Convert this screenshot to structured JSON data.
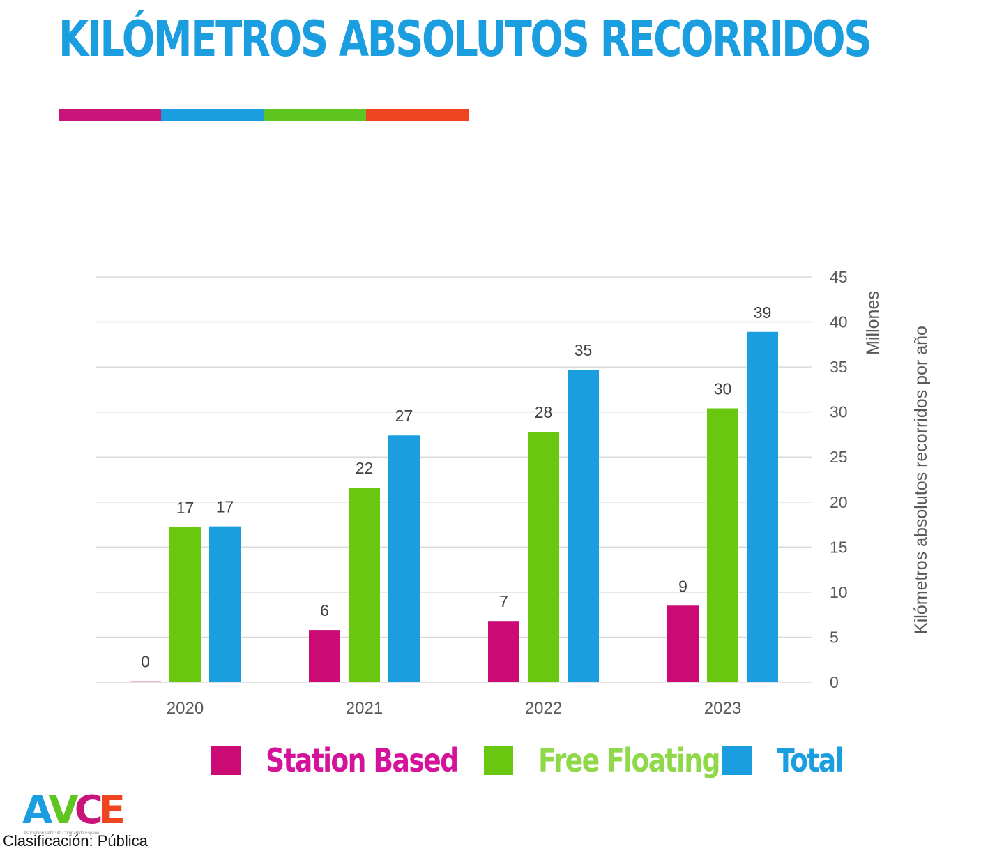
{
  "title": "KILÓMETROS ABSOLUTOS RECORRIDOS",
  "colors": {
    "title": "#1a9ee0",
    "magenta": "#cc0a74",
    "green": "#6ac710",
    "blue": "#1a9ee0",
    "red": "#ee4420",
    "green_text": "#8fd84a",
    "magenta_text": "#d4139a",
    "grid": "#d9d9d9",
    "tick_text": "#595959"
  },
  "stripe_colors": [
    "#c9157a",
    "#1a9ee0",
    "#5fc520",
    "#ee4420"
  ],
  "chart_data": {
    "type": "bar",
    "categories": [
      "2020",
      "2021",
      "2022",
      "2023"
    ],
    "series": [
      {
        "name": "Station Based",
        "values": [
          0,
          6,
          7,
          9
        ],
        "plot_values": [
          0.1,
          5.8,
          6.8,
          8.5
        ],
        "color": "#cc0a74"
      },
      {
        "name": "Free Floating",
        "values": [
          17,
          22,
          28,
          30
        ],
        "plot_values": [
          17.2,
          21.6,
          27.8,
          30.4
        ],
        "color": "#6ac710"
      },
      {
        "name": "Total",
        "values": [
          17,
          27,
          35,
          39
        ],
        "plot_values": [
          17.3,
          27.4,
          34.7,
          38.9
        ],
        "color": "#1a9ee0"
      }
    ],
    "yticks": [
      0,
      5,
      10,
      15,
      20,
      25,
      30,
      35,
      40,
      45
    ],
    "ylim": [
      0,
      45
    ],
    "y_unit_label": "Millones",
    "ylabel": "Kilómetros absolutos recorridos por año",
    "y_axis_side": "right",
    "grid": true,
    "legend_position": "bottom"
  },
  "logo": {
    "letters": [
      {
        "char": "A",
        "color": "#1a9ee0"
      },
      {
        "char": "V",
        "color": "#5fc520"
      },
      {
        "char": "C",
        "color": "#c9157a"
      },
      {
        "char": "E",
        "color": "#ee4420"
      }
    ],
    "subtitle": "Asociación Vehículo Compartido España"
  },
  "classification": "Clasificación: Pública"
}
